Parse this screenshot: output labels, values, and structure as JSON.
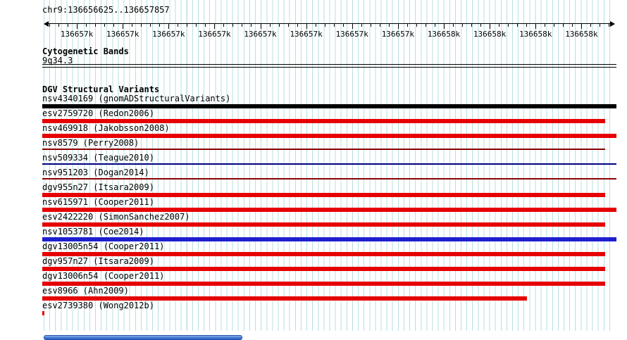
{
  "colors": {
    "grid_line": "#b8dfe3",
    "ruler": "#000000",
    "scrollbar_thumb": "#3767c6"
  },
  "browser": {
    "locus": "chr9:136656625..136657857"
  },
  "ruler": {
    "tick_labels": [
      "136657k",
      "136657k",
      "136657k",
      "136657k",
      "136657k",
      "136657k",
      "136657k",
      "136657k",
      "136658k",
      "136658k",
      "136658k",
      "136658k"
    ]
  },
  "cytogenetic": {
    "heading": "Cytogenetic Bands",
    "band": "9q34.3"
  },
  "dgv": {
    "heading": "DGV Structural Variants",
    "tracks": [
      {
        "label": "nsv4340169 (gnomADStructuralVariants)",
        "color": "#000000",
        "style": "thick",
        "width_pct": 100
      },
      {
        "label": "esv2759720 (Redon2006)",
        "color": "#e60000",
        "style": "thick",
        "width_pct": 98
      },
      {
        "label": "nsv469918 (Jakobsson2008)",
        "color": "#e60000",
        "style": "thick",
        "width_pct": 100
      },
      {
        "label": "nsv8579 (Perry2008)",
        "color": "#8b0000",
        "style": "thin",
        "width_pct": 98
      },
      {
        "label": "nsv509334 (Teague2010)",
        "color": "#000080",
        "style": "thin",
        "width_pct": 100
      },
      {
        "label": "nsv951203 (Dogan2014)",
        "color": "#8b0000",
        "style": "thin",
        "width_pct": 100
      },
      {
        "label": "dgv955n27 (Itsara2009)",
        "color": "#e60000",
        "style": "thick",
        "width_pct": 98
      },
      {
        "label": "nsv615971 (Cooper2011)",
        "color": "#e60000",
        "style": "thick",
        "width_pct": 100
      },
      {
        "label": "esv2422220 (SimonSanchez2007)",
        "color": "#e60000",
        "style": "thick",
        "width_pct": 98
      },
      {
        "label": "nsv1053781 (Coe2014)",
        "color": "#1f1fd0",
        "style": "thick",
        "width_pct": 100
      },
      {
        "label": "dgv13005n54 (Cooper2011)",
        "color": "#e60000",
        "style": "thick",
        "width_pct": 98
      },
      {
        "label": "dgv957n27 (Itsara2009)",
        "color": "#e60000",
        "style": "thick",
        "width_pct": 98
      },
      {
        "label": "dgv13006n54 (Cooper2011)",
        "color": "#e60000",
        "style": "thick",
        "width_pct": 98
      },
      {
        "label": "esv8966 (Ahn2009)",
        "color": "#e60000",
        "style": "thick",
        "width_pct": 84.4
      },
      {
        "label": "esv2739380 (Wong2012b)",
        "color": "#e60000",
        "style": "thick",
        "width_pct": 0.37
      }
    ]
  }
}
